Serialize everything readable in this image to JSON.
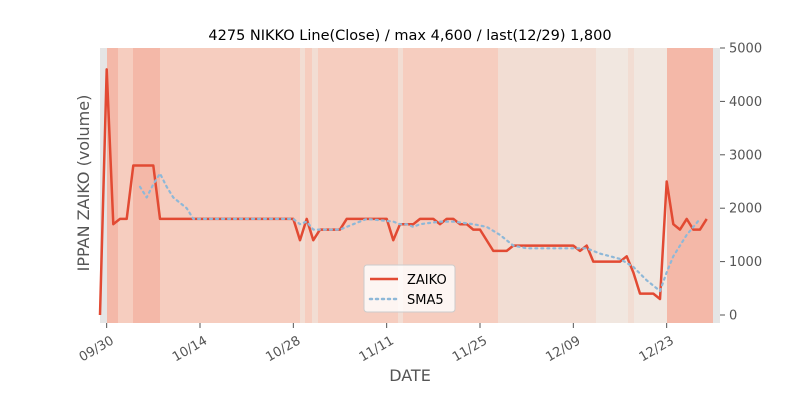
{
  "chart_data": {
    "type": "line",
    "title": "4275 NIKKO Line(Close) / max 4,600 / last(12/29) 1,800",
    "xlabel": "DATE",
    "ylabel": "IPPAN ZAIKO (volume)",
    "ylim": [
      0,
      5000
    ],
    "yticks": [
      0,
      1000,
      2000,
      3000,
      4000,
      5000
    ],
    "y_axis_side": "right",
    "xlim": [
      "2019-09-29",
      "2019-12-31"
    ],
    "xticks": [
      {
        "date": "2019-09-30",
        "label": "09/30"
      },
      {
        "date": "2019-10-14",
        "label": "10/14"
      },
      {
        "date": "2019-10-28",
        "label": "10/28"
      },
      {
        "date": "2019-11-11",
        "label": "11/11"
      },
      {
        "date": "2019-11-25",
        "label": "11/25"
      },
      {
        "date": "2019-12-09",
        "label": "12/09"
      },
      {
        "date": "2019-12-23",
        "label": "12/23"
      }
    ],
    "legend_position": "bottom-center",
    "grid": false,
    "background_colors": {
      "dark": "#f4b8a8",
      "medium": "#f6cdbf",
      "light": "#f2ddd3",
      "pale": "#f1e7e0",
      "edge": "#e5e5e5"
    },
    "series": [
      {
        "name": "ZAIKO",
        "style": "solid",
        "color": "#e24a33",
        "points": [
          [
            "2019-09-29",
            0
          ],
          [
            "2019-09-30",
            4600
          ],
          [
            "2019-10-01",
            1700
          ],
          [
            "2019-10-02",
            1800
          ],
          [
            "2019-10-03",
            1800
          ],
          [
            "2019-10-04",
            2800
          ],
          [
            "2019-10-07",
            2800
          ],
          [
            "2019-10-08",
            1800
          ],
          [
            "2019-10-10",
            1800
          ],
          [
            "2019-10-28",
            1800
          ],
          [
            "2019-10-29",
            1400
          ],
          [
            "2019-10-30",
            1800
          ],
          [
            "2019-10-31",
            1400
          ],
          [
            "2019-11-01",
            1600
          ],
          [
            "2019-11-04",
            1600
          ],
          [
            "2019-11-05",
            1800
          ],
          [
            "2019-11-11",
            1800
          ],
          [
            "2019-11-12",
            1400
          ],
          [
            "2019-11-13",
            1700
          ],
          [
            "2019-11-15",
            1700
          ],
          [
            "2019-11-16",
            1800
          ],
          [
            "2019-11-18",
            1800
          ],
          [
            "2019-11-19",
            1700
          ],
          [
            "2019-11-20",
            1800
          ],
          [
            "2019-11-21",
            1800
          ],
          [
            "2019-11-22",
            1700
          ],
          [
            "2019-11-23",
            1700
          ],
          [
            "2019-11-24",
            1600
          ],
          [
            "2019-11-25",
            1600
          ],
          [
            "2019-11-27",
            1200
          ],
          [
            "2019-11-29",
            1200
          ],
          [
            "2019-11-30",
            1300
          ],
          [
            "2019-12-09",
            1300
          ],
          [
            "2019-12-10",
            1200
          ],
          [
            "2019-12-11",
            1300
          ],
          [
            "2019-12-12",
            1000
          ],
          [
            "2019-12-16",
            1000
          ],
          [
            "2019-12-17",
            1100
          ],
          [
            "2019-12-18",
            800
          ],
          [
            "2019-12-19",
            400
          ],
          [
            "2019-12-21",
            400
          ],
          [
            "2019-12-22",
            300
          ],
          [
            "2019-12-23",
            2500
          ],
          [
            "2019-12-24",
            1700
          ],
          [
            "2019-12-25",
            1600
          ],
          [
            "2019-12-26",
            1800
          ],
          [
            "2019-12-27",
            1600
          ],
          [
            "2019-12-28",
            1600
          ],
          [
            "2019-12-29",
            1800
          ]
        ]
      },
      {
        "name": "SMA5",
        "style": "dotted",
        "color": "#8eb8d8",
        "points": [
          [
            "2019-10-05",
            2400
          ],
          [
            "2019-10-06",
            2200
          ],
          [
            "2019-10-07",
            2450
          ],
          [
            "2019-10-08",
            2650
          ],
          [
            "2019-10-09",
            2400
          ],
          [
            "2019-10-10",
            2200
          ],
          [
            "2019-10-11",
            2100
          ],
          [
            "2019-10-12",
            2000
          ],
          [
            "2019-10-13",
            1800
          ],
          [
            "2019-10-28",
            1800
          ],
          [
            "2019-10-29",
            1700
          ],
          [
            "2019-10-30",
            1750
          ],
          [
            "2019-10-31",
            1600
          ],
          [
            "2019-11-01",
            1600
          ],
          [
            "2019-11-04",
            1600
          ],
          [
            "2019-11-06",
            1700
          ],
          [
            "2019-11-08",
            1800
          ],
          [
            "2019-11-12",
            1750
          ],
          [
            "2019-11-13",
            1700
          ],
          [
            "2019-11-14",
            1700
          ],
          [
            "2019-11-15",
            1650
          ],
          [
            "2019-11-16",
            1700
          ],
          [
            "2019-11-19",
            1750
          ],
          [
            "2019-11-21",
            1750
          ],
          [
            "2019-11-24",
            1700
          ],
          [
            "2019-11-26",
            1650
          ],
          [
            "2019-11-28",
            1500
          ],
          [
            "2019-11-30",
            1300
          ],
          [
            "2019-12-02",
            1250
          ],
          [
            "2019-12-09",
            1250
          ],
          [
            "2019-12-11",
            1250
          ],
          [
            "2019-12-13",
            1150
          ],
          [
            "2019-12-16",
            1050
          ],
          [
            "2019-12-18",
            900
          ],
          [
            "2019-12-20",
            650
          ],
          [
            "2019-12-22",
            450
          ],
          [
            "2019-12-23",
            800
          ],
          [
            "2019-12-24",
            1100
          ],
          [
            "2019-12-26",
            1500
          ],
          [
            "2019-12-28",
            1800
          ]
        ]
      }
    ]
  }
}
